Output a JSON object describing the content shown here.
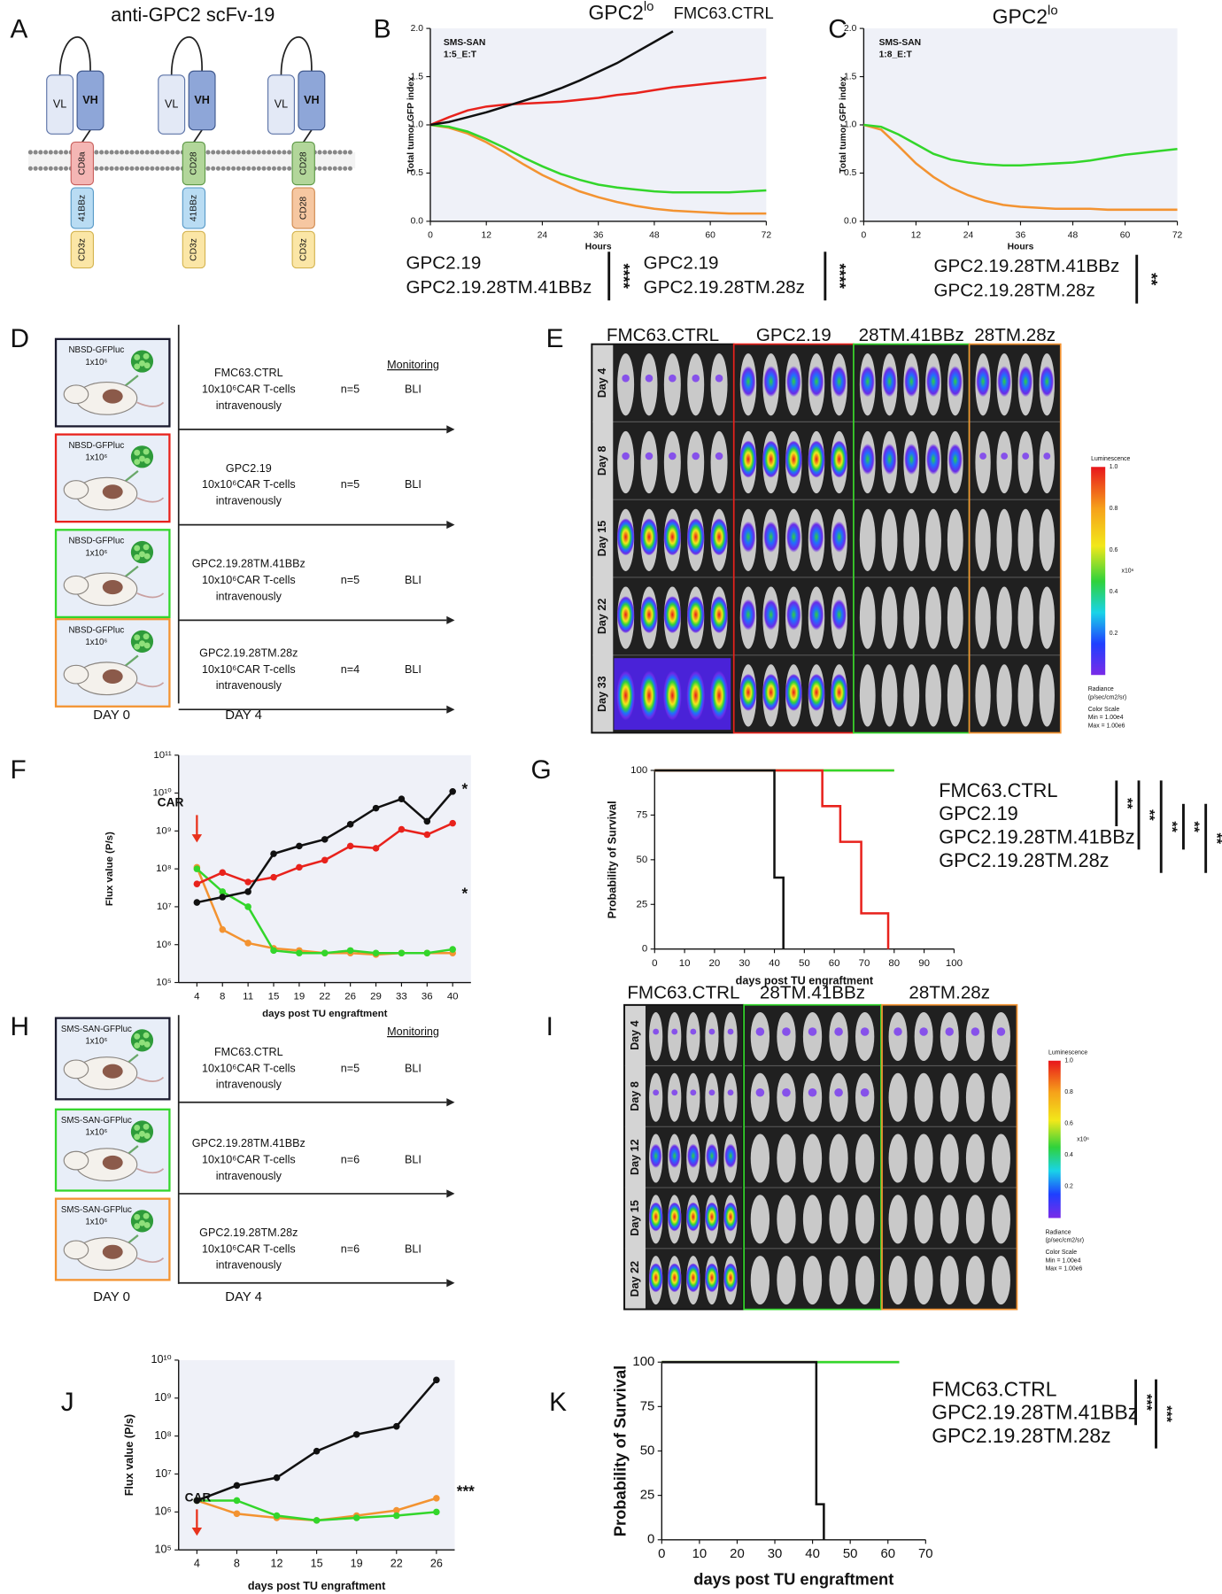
{
  "panel_labels": [
    "A",
    "B",
    "C",
    "D",
    "E",
    "F",
    "G",
    "H",
    "I",
    "J",
    "K"
  ],
  "panel_a": {
    "title": "anti-GPC2 scFv-19",
    "constructs": [
      {
        "domains": [
          "VL",
          "VH",
          "CD8a",
          "41BBz",
          "CD3z"
        ]
      },
      {
        "domains": [
          "VL",
          "VH",
          "CD28",
          "41BBz",
          "CD3z"
        ]
      },
      {
        "domains": [
          "VL",
          "VH",
          "CD28",
          "CD28",
          "CD3z"
        ]
      }
    ]
  },
  "panel_d": {
    "monitoring": "Monitoring",
    "days": [
      "DAY 0",
      "DAY 4"
    ],
    "rows": [
      {
        "tumor": "NBSD-GFPluc",
        "dose": "1x10⁶",
        "car": "FMC63.CTRL",
        "cells": "10x10⁶CAR T-cells",
        "route": "intravenously",
        "n": "n=5",
        "readout": "BLI",
        "color": "#1a1a2e"
      },
      {
        "tumor": "NBSD-GFPluc",
        "dose": "1x10⁶",
        "car": "GPC2.19",
        "cells": "10x10⁶CAR T-cells",
        "route": "intravenously",
        "n": "n=5",
        "readout": "BLI",
        "color": "#e8221c"
      },
      {
        "tumor": "NBSD-GFPluc",
        "dose": "1x10⁶",
        "car": "GPC2.19.28TM.41BBz",
        "cells": "10x10⁶CAR T-cells",
        "route": "intravenously",
        "n": "n=5",
        "readout": "BLI",
        "color": "#33d62b"
      },
      {
        "tumor": "NBSD-GFPluc",
        "dose": "1x10⁶",
        "car": "GPC2.19.28TM.28z",
        "cells": "10x10⁶CAR T-cells",
        "route": "intravenously",
        "n": "n=4",
        "readout": "BLI",
        "color": "#f39331"
      }
    ]
  },
  "panel_e": {
    "columns": [
      {
        "name": "FMC63.CTRL",
        "color": "#111111"
      },
      {
        "name": "GPC2.19",
        "color": "#e8221c"
      },
      {
        "name": "28TM.41BBz",
        "color": "#33d62b"
      },
      {
        "name": "28TM.28z",
        "color": "#f39331"
      }
    ],
    "rows": [
      "Day 4",
      "Day 8",
      "Day 15",
      "Day 22",
      "Day 33"
    ],
    "colorbar": {
      "title": "Luminescence",
      "ticks": [
        "1.0",
        "0.8",
        "0.6",
        "0.4",
        "0.2"
      ],
      "unit": "x10⁶",
      "radiance": "Radiance",
      "radiance_unit": "(p/sec/cm2/sr)",
      "scale": "Color Scale",
      "min": "Min = 1.00e4",
      "max": "Max = 1.00e6"
    }
  },
  "panel_h": {
    "monitoring": "Monitoring",
    "days": [
      "DAY 0",
      "DAY 4"
    ],
    "rows": [
      {
        "tumor": "SMS-SAN-GFPluc",
        "dose": "1x10⁶",
        "car": "FMC63.CTRL",
        "cells": "10x10⁶CAR T-cells",
        "route": "intravenously",
        "n": "n=5",
        "readout": "BLI",
        "color": "#1a1a2e"
      },
      {
        "tumor": "SMS-SAN-GFPluc",
        "dose": "1x10⁶",
        "car": "GPC2.19.28TM.41BBz",
        "cells": "10x10⁶CAR T-cells",
        "route": "intravenously",
        "n": "n=6",
        "readout": "BLI",
        "color": "#33d62b"
      },
      {
        "tumor": "SMS-SAN-GFPluc",
        "dose": "1x10⁶",
        "car": "GPC2.19.28TM.28z",
        "cells": "10x10⁶CAR T-cells",
        "route": "intravenously",
        "n": "n=6",
        "readout": "BLI",
        "color": "#f39331"
      }
    ]
  },
  "panel_i": {
    "columns": [
      {
        "name": "FMC63.CTRL",
        "color": "#111111"
      },
      {
        "name": "28TM.41BBz",
        "color": "#33d62b"
      },
      {
        "name": "28TM.28z",
        "color": "#f39331"
      }
    ],
    "rows": [
      "Day 4",
      "Day 8",
      "Day 12",
      "Day 15",
      "Day 22"
    ],
    "colorbar": {
      "title": "Luminescence",
      "ticks": [
        "1.0",
        "0.8",
        "0.6",
        "0.4",
        "0.2"
      ],
      "unit": "x10⁶",
      "radiance": "Radiance",
      "radiance_unit": "(p/sec/cm2/sr)",
      "scale": "Color Scale",
      "min": "Min = 1.00e4",
      "max": "Max = 1.00e6"
    }
  },
  "chart_data": [
    {
      "type": "line",
      "title": "GPC2",
      "title_superscript": "lo",
      "annotation": [
        "SMS-SAN",
        "1:5_E:T"
      ],
      "x_label": "Hours",
      "y_label": "Total tumor GFP index",
      "plot_background": "#eff1f8",
      "x": [
        0,
        4,
        8,
        12,
        16,
        20,
        24,
        28,
        32,
        36,
        40,
        44,
        48,
        52,
        56,
        60,
        64,
        68,
        72
      ],
      "xlim": [
        0,
        72
      ],
      "xticks": [
        0,
        12,
        24,
        36,
        48,
        60,
        72
      ],
      "ylim": [
        0,
        2
      ],
      "yticks": [
        {
          "value": 0,
          "label": "0.0"
        },
        0.5,
        {
          "value": 1,
          "label": "1.0"
        },
        1.5,
        {
          "value": 2,
          "label": "2.0"
        }
      ],
      "series": [
        {
          "name": "FMC63.CTRL",
          "color": "#111111",
          "values": [
            1.0,
            1.03,
            1.08,
            1.13,
            1.19,
            1.25,
            1.31,
            1.38,
            1.46,
            1.55,
            1.64,
            1.75,
            1.86,
            1.97,
            null,
            null,
            null,
            null,
            null
          ]
        },
        {
          "name": "GPC2.19",
          "color": "#e8221c",
          "values": [
            1.0,
            1.08,
            1.15,
            1.19,
            1.21,
            1.22,
            1.23,
            1.24,
            1.26,
            1.28,
            1.31,
            1.33,
            1.36,
            1.39,
            1.41,
            1.43,
            1.45,
            1.47,
            1.49
          ]
        },
        {
          "name": "GPC2.19.28TM.41BBz",
          "color": "#33d62b",
          "values": [
            1.0,
            0.98,
            0.93,
            0.85,
            0.76,
            0.66,
            0.57,
            0.49,
            0.43,
            0.38,
            0.35,
            0.33,
            0.31,
            0.3,
            0.3,
            0.3,
            0.3,
            0.31,
            0.32
          ]
        },
        {
          "name": "GPC2.19.28TM.28z",
          "color": "#f39331",
          "values": [
            1.0,
            0.97,
            0.91,
            0.82,
            0.71,
            0.59,
            0.48,
            0.39,
            0.31,
            0.25,
            0.2,
            0.16,
            0.13,
            0.11,
            0.1,
            0.09,
            0.08,
            0.08,
            0.08
          ]
        }
      ],
      "comparisons": [
        {
          "series": [
            1,
            2
          ],
          "label": "****"
        },
        {
          "series": [
            1,
            3
          ],
          "label": "****"
        }
      ]
    },
    {
      "type": "line",
      "title": "GPC2",
      "title_superscript": "lo",
      "annotation": [
        "SMS-SAN",
        "1:8_E:T"
      ],
      "x_label": "Hours",
      "y_label": "Total tumor GFP index",
      "plot_background": "#eff1f8",
      "x": [
        0,
        4,
        8,
        12,
        16,
        20,
        24,
        28,
        32,
        36,
        40,
        44,
        48,
        52,
        56,
        60,
        64,
        68,
        72
      ],
      "xlim": [
        0,
        72
      ],
      "xticks": [
        0,
        12,
        24,
        36,
        48,
        60,
        72
      ],
      "ylim": [
        0,
        2
      ],
      "yticks": [
        {
          "value": 0,
          "label": "0.0"
        },
        0.5,
        {
          "value": 1,
          "label": "1.0"
        },
        1.5,
        {
          "value": 2,
          "label": "2.0"
        }
      ],
      "series": [
        {
          "name": "GPC2.19.28TM.41BBz",
          "color": "#33d62b",
          "values": [
            1.0,
            0.98,
            0.9,
            0.8,
            0.7,
            0.64,
            0.61,
            0.59,
            0.58,
            0.58,
            0.59,
            0.6,
            0.61,
            0.63,
            0.66,
            0.69,
            0.71,
            0.73,
            0.75
          ]
        },
        {
          "name": "GPC2.19.28TM.28z",
          "color": "#f39331",
          "values": [
            1.0,
            0.95,
            0.78,
            0.6,
            0.46,
            0.35,
            0.27,
            0.21,
            0.17,
            0.15,
            0.14,
            0.13,
            0.13,
            0.13,
            0.12,
            0.12,
            0.12,
            0.12,
            0.12
          ]
        }
      ],
      "comparisons": [
        {
          "series": [
            0,
            1
          ],
          "label": "**"
        }
      ]
    },
    {
      "type": "line",
      "y_scale": "log",
      "markers": true,
      "plot_background": "#eff1f8",
      "x_label": "days post TU engraftment",
      "y_label": "Flux value (P/s)",
      "arrow_label": "CAR",
      "significance": [
        "*",
        "*"
      ],
      "categories": [
        "4",
        "8",
        "11",
        "15",
        "19",
        "22",
        "26",
        "29",
        "33",
        "36",
        "40"
      ],
      "ylim": [
        100000.0,
        100000000000.0
      ],
      "yticks": [
        {
          "value": 100000.0,
          "label": "10⁵"
        },
        {
          "value": 1000000.0,
          "label": "10⁶"
        },
        {
          "value": 10000000.0,
          "label": "10⁷"
        },
        {
          "value": 100000000.0,
          "label": "10⁸"
        },
        {
          "value": 1000000000.0,
          "label": "10⁹"
        },
        {
          "value": 10000000000.0,
          "label": "10¹⁰"
        },
        {
          "value": 100000000000.0,
          "label": "10¹¹"
        }
      ],
      "series": [
        {
          "name": "FMC63.CTRL",
          "color": "#111111",
          "values": [
            13000000.0,
            18000000.0,
            25000000.0,
            250000000.0,
            400000000.0,
            600000000.0,
            1500000000.0,
            4000000000.0,
            7000000000.0,
            1800000000.0,
            11000000000.0
          ]
        },
        {
          "name": "GPC2.19",
          "color": "#e8221c",
          "values": [
            40000000.0,
            80000000.0,
            45000000.0,
            60000000.0,
            110000000.0,
            170000000.0,
            400000000.0,
            350000000.0,
            1100000000.0,
            800000000.0,
            1600000000.0
          ]
        },
        {
          "name": "GPC2.19.28TM.41BBz",
          "color": "#33d62b",
          "values": [
            100000000.0,
            25000000.0,
            10000000.0,
            700000.0,
            600000.0,
            600000.0,
            700000.0,
            600000.0,
            600000.0,
            600000.0,
            750000.0
          ]
        },
        {
          "name": "GPC2.19.28TM.28z",
          "color": "#f39331",
          "values": [
            110000000.0,
            2500000.0,
            1100000.0,
            800000.0,
            700000.0,
            600000.0,
            600000.0,
            550000.0,
            600000.0,
            600000.0,
            600000.0
          ]
        }
      ]
    },
    {
      "type": "step",
      "x_label": "days post TU engraftment",
      "y_label": "Probability of Survival",
      "xlim": [
        0,
        100
      ],
      "xticks": [
        0,
        10,
        20,
        30,
        40,
        50,
        60,
        70,
        80,
        90,
        100
      ],
      "ylim": [
        0,
        100
      ],
      "yticks": [
        0,
        25,
        50,
        75,
        100
      ],
      "series": [
        {
          "name": "FMC63.CTRL",
          "color": "#111111",
          "x": [
            0,
            40,
            43
          ],
          "values": [
            100,
            40,
            0
          ]
        },
        {
          "name": "GPC2.19",
          "color": "#e8221c",
          "x": [
            0,
            56,
            62,
            69,
            78
          ],
          "values": [
            100,
            80,
            60,
            20,
            0
          ]
        },
        {
          "name": "GPC2.19.28TM.41BBz",
          "color": "#33d62b",
          "x": [
            0,
            80
          ],
          "values": [
            100,
            100
          ]
        },
        {
          "name": "GPC2.19.28TM.28z",
          "color": "#f39331",
          "x": [
            0,
            80
          ],
          "values": [
            100,
            100
          ]
        }
      ],
      "comparisons": [
        {
          "series": [
            0,
            1
          ],
          "label": "**"
        },
        {
          "series": [
            0,
            2
          ],
          "label": "**"
        },
        {
          "series": [
            0,
            3
          ],
          "label": "**"
        },
        {
          "series": [
            1,
            2
          ],
          "label": "**"
        },
        {
          "series": [
            1,
            3
          ],
          "label": "**"
        }
      ]
    },
    {
      "type": "line",
      "y_scale": "log",
      "markers": true,
      "plot_background": "#eff1f8",
      "x_label": "days post TU  engraftment",
      "y_label": "Flux value (P/s)",
      "arrow_label": "CAR",
      "significance": [
        "***"
      ],
      "categories": [
        "4",
        "8",
        "12",
        "15",
        "19",
        "22",
        "26"
      ],
      "ylim": [
        100000.0,
        10000000000.0
      ],
      "yticks": [
        {
          "value": 100000.0,
          "label": "10⁵"
        },
        {
          "value": 1000000.0,
          "label": "10⁶"
        },
        {
          "value": 10000000.0,
          "label": "10⁷"
        },
        {
          "value": 100000000.0,
          "label": "10⁸"
        },
        {
          "value": 1000000000.0,
          "label": "10⁹"
        },
        {
          "value": 10000000000.0,
          "label": "10¹⁰"
        }
      ],
      "series": [
        {
          "name": "FMC63.CTRL",
          "color": "#111111",
          "values": [
            2000000.0,
            5000000.0,
            8000000.0,
            40000000.0,
            110000000.0,
            180000000.0,
            3000000000.0
          ]
        },
        {
          "name": "GPC2.19.28TM.41BBz",
          "color": "#33d62b",
          "values": [
            2000000.0,
            2000000.0,
            800000.0,
            600000.0,
            700000.0,
            800000.0,
            1000000.0
          ]
        },
        {
          "name": "GPC2.19.28TM.28z",
          "color": "#f39331",
          "values": [
            2000000.0,
            900000.0,
            700000.0,
            600000.0,
            800000.0,
            1100000.0,
            2300000.0
          ]
        }
      ]
    },
    {
      "type": "step",
      "x_label": "days post TU engraftment",
      "y_label": "Probability of Survival",
      "xlim": [
        0,
        70
      ],
      "xticks": [
        0,
        10,
        20,
        30,
        40,
        50,
        60,
        70
      ],
      "ylim": [
        0,
        100
      ],
      "yticks": [
        0,
        25,
        50,
        75,
        100
      ],
      "series": [
        {
          "name": "FMC63.CTRL",
          "color": "#111111",
          "x": [
            0,
            41,
            43
          ],
          "values": [
            100,
            20,
            0
          ]
        },
        {
          "name": "GPC2.19.28TM.41BBz",
          "color": "#33d62b",
          "x": [
            0,
            63
          ],
          "values": [
            100,
            100
          ]
        },
        {
          "name": "GPC2.19.28TM.28z",
          "color": "#f39331",
          "x": [
            0,
            63
          ],
          "values": [
            100,
            100
          ]
        }
      ],
      "comparisons": [
        {
          "series": [
            0,
            1
          ],
          "label": "***"
        },
        {
          "series": [
            0,
            2
          ],
          "label": "***"
        }
      ]
    }
  ]
}
